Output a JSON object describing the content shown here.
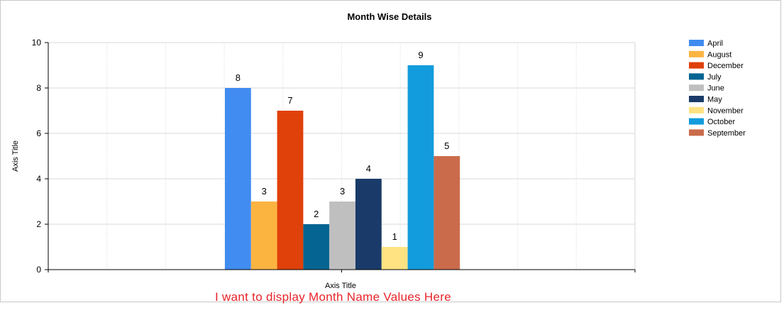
{
  "chart_data": {
    "type": "bar",
    "title": "Month Wise Details",
    "xlabel": "Axis Title",
    "ylabel": "Axis Title",
    "ylim": [
      0,
      10
    ],
    "yticks": [
      0,
      2,
      4,
      6,
      8,
      10
    ],
    "grid": true,
    "legend_position": "right",
    "series": [
      {
        "name": "April",
        "value": 8,
        "color": "#418cf0"
      },
      {
        "name": "August",
        "value": 3,
        "color": "#fcb441"
      },
      {
        "name": "December",
        "value": 7,
        "color": "#e0400a"
      },
      {
        "name": "July",
        "value": 2,
        "color": "#056492"
      },
      {
        "name": "June",
        "value": 3,
        "color": "#bfbfbf"
      },
      {
        "name": "May",
        "value": 4,
        "color": "#1a3b69"
      },
      {
        "name": "November",
        "value": 1,
        "color": "#ffe382"
      },
      {
        "name": "October",
        "value": 9,
        "color": "#129cdd"
      },
      {
        "name": "September",
        "value": 5,
        "color": "#ca6b4b"
      }
    ]
  },
  "annotation": "I want to display Month Name Values Here"
}
